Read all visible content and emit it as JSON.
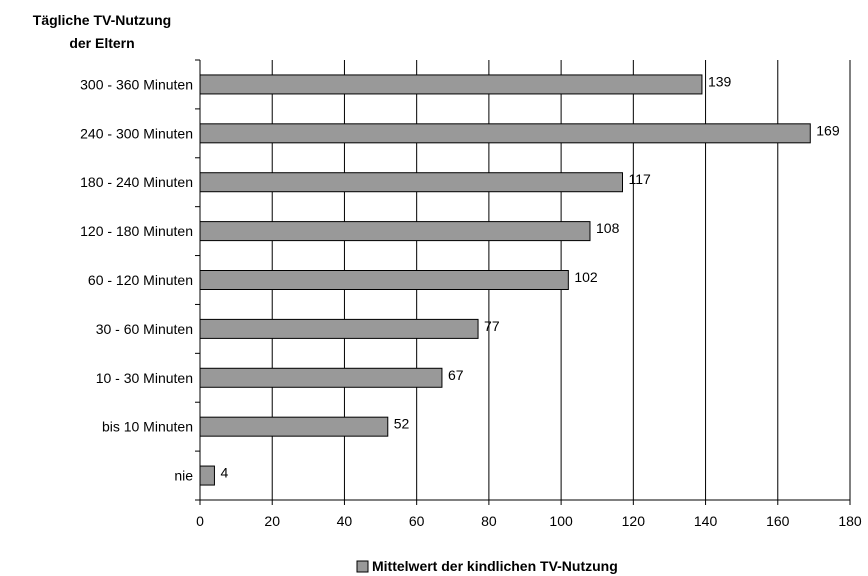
{
  "chart_data": {
    "type": "bar",
    "orientation": "horizontal",
    "title_lines": [
      "Tägliche TV-Nutzung",
      "der Eltern"
    ],
    "categories": [
      "300 - 360 Minuten",
      "240 - 300 Minuten",
      "180 - 240 Minuten",
      "120 - 180 Minuten",
      "60 - 120 Minuten",
      "30 - 60 Minuten",
      "10 - 30 Minuten",
      "bis 10 Minuten",
      "nie"
    ],
    "series": [
      {
        "name": "Mittelwert der kindlichen TV-Nutzung",
        "values": [
          139,
          169,
          117,
          108,
          102,
          77,
          67,
          52,
          4
        ],
        "color": "#999999"
      }
    ],
    "xlim": [
      0,
      180
    ],
    "xticks": [
      0,
      20,
      40,
      60,
      80,
      100,
      120,
      140,
      160,
      180
    ],
    "grid": "vertical",
    "legend_position": "bottom-center"
  }
}
